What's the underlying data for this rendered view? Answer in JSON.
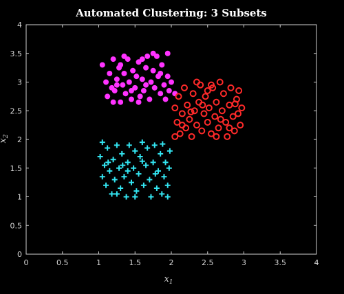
{
  "chart_data": {
    "type": "scatter",
    "title": "Automated Clustering: 3 Subsets",
    "xlabel": "x",
    "xlabel_subscript": "1",
    "ylabel": "x",
    "ylabel_subscript": "2",
    "xlim": [
      0,
      4
    ],
    "ylim": [
      0,
      4
    ],
    "xticks": [
      "0",
      "0.5",
      "1",
      "1.5",
      "2",
      "2.5",
      "3",
      "3.5",
      "4"
    ],
    "yticks": [
      "0",
      "0.5",
      "1",
      "1.5",
      "2",
      "2.5",
      "3",
      "3.5",
      "4"
    ],
    "grid": false,
    "series": [
      {
        "marker": "filled-circle",
        "color": "#ff33ff",
        "points": [
          [
            1.05,
            3.3
          ],
          [
            1.1,
            3.0
          ],
          [
            1.12,
            2.75
          ],
          [
            1.15,
            3.15
          ],
          [
            1.18,
            2.9
          ],
          [
            1.2,
            3.4
          ],
          [
            1.22,
            2.85
          ],
          [
            1.25,
            3.05
          ],
          [
            1.28,
            3.25
          ],
          [
            1.3,
            2.65
          ],
          [
            1.3,
            3.3
          ],
          [
            1.33,
            2.95
          ],
          [
            1.35,
            3.15
          ],
          [
            1.37,
            2.8
          ],
          [
            1.4,
            3.4
          ],
          [
            1.42,
            3.0
          ],
          [
            1.45,
            2.7
          ],
          [
            1.47,
            3.2
          ],
          [
            1.5,
            2.9
          ],
          [
            1.52,
            3.1
          ],
          [
            1.55,
            3.35
          ],
          [
            1.57,
            2.75
          ],
          [
            1.6,
            3.05
          ],
          [
            1.62,
            2.85
          ],
          [
            1.65,
            3.25
          ],
          [
            1.67,
            3.45
          ],
          [
            1.7,
            2.7
          ],
          [
            1.72,
            3.0
          ],
          [
            1.75,
            3.2
          ],
          [
            1.77,
            2.9
          ],
          [
            1.8,
            3.45
          ],
          [
            1.82,
            3.1
          ],
          [
            1.85,
            2.8
          ],
          [
            1.87,
            3.3
          ],
          [
            1.9,
            2.95
          ],
          [
            1.92,
            2.7
          ],
          [
            1.95,
            3.1
          ],
          [
            1.97,
            2.85
          ],
          [
            2.0,
            3.0
          ],
          [
            2.05,
            2.8
          ],
          [
            1.2,
            2.65
          ],
          [
            1.35,
            3.45
          ],
          [
            1.55,
            2.65
          ],
          [
            1.65,
            2.95
          ],
          [
            1.75,
            3.5
          ],
          [
            1.85,
            3.15
          ],
          [
            1.95,
            3.5
          ],
          [
            1.6,
            3.4
          ],
          [
            1.45,
            2.85
          ],
          [
            1.25,
            2.95
          ]
        ]
      },
      {
        "marker": "open-circle",
        "color": "#ff2a2a",
        "points": [
          [
            2.05,
            2.05
          ],
          [
            2.05,
            2.55
          ],
          [
            2.08,
            2.3
          ],
          [
            2.1,
            2.75
          ],
          [
            2.12,
            2.1
          ],
          [
            2.15,
            2.45
          ],
          [
            2.18,
            2.9
          ],
          [
            2.2,
            2.2
          ],
          [
            2.22,
            2.6
          ],
          [
            2.25,
            2.35
          ],
          [
            2.28,
            2.05
          ],
          [
            2.3,
            2.8
          ],
          [
            2.32,
            2.5
          ],
          [
            2.35,
            2.25
          ],
          [
            2.38,
            2.65
          ],
          [
            2.4,
            2.95
          ],
          [
            2.42,
            2.15
          ],
          [
            2.45,
            2.45
          ],
          [
            2.47,
            2.75
          ],
          [
            2.5,
            2.3
          ],
          [
            2.52,
            2.55
          ],
          [
            2.55,
            2.1
          ],
          [
            2.57,
            2.9
          ],
          [
            2.6,
            2.4
          ],
          [
            2.62,
            2.65
          ],
          [
            2.65,
            2.2
          ],
          [
            2.67,
            3.0
          ],
          [
            2.7,
            2.5
          ],
          [
            2.72,
            2.8
          ],
          [
            2.75,
            2.3
          ],
          [
            2.77,
            2.05
          ],
          [
            2.8,
            2.6
          ],
          [
            2.82,
            2.9
          ],
          [
            2.85,
            2.4
          ],
          [
            2.87,
            2.15
          ],
          [
            2.9,
            2.7
          ],
          [
            2.92,
            2.45
          ],
          [
            2.95,
            2.25
          ],
          [
            2.97,
            2.55
          ],
          [
            2.93,
            2.85
          ],
          [
            2.35,
            3.0
          ],
          [
            2.55,
            2.95
          ],
          [
            2.15,
            2.25
          ],
          [
            2.62,
            2.05
          ],
          [
            2.8,
            2.2
          ],
          [
            2.43,
            2.6
          ],
          [
            2.68,
            2.35
          ],
          [
            2.27,
            2.48
          ],
          [
            2.88,
            2.62
          ],
          [
            2.5,
            2.85
          ]
        ]
      },
      {
        "marker": "plus",
        "color": "#33e6f2",
        "points": [
          [
            1.02,
            1.7
          ],
          [
            1.05,
            1.35
          ],
          [
            1.05,
            1.95
          ],
          [
            1.08,
            1.55
          ],
          [
            1.1,
            1.2
          ],
          [
            1.12,
            1.85
          ],
          [
            1.15,
            1.45
          ],
          [
            1.18,
            1.05
          ],
          [
            1.2,
            1.65
          ],
          [
            1.22,
            1.3
          ],
          [
            1.25,
            1.9
          ],
          [
            1.28,
            1.5
          ],
          [
            1.3,
            1.15
          ],
          [
            1.32,
            1.75
          ],
          [
            1.35,
            1.35
          ],
          [
            1.38,
            1.0
          ],
          [
            1.4,
            1.6
          ],
          [
            1.42,
            1.9
          ],
          [
            1.45,
            1.25
          ],
          [
            1.48,
            1.5
          ],
          [
            1.5,
            1.8
          ],
          [
            1.52,
            1.1
          ],
          [
            1.55,
            1.4
          ],
          [
            1.57,
            1.7
          ],
          [
            1.6,
            1.95
          ],
          [
            1.62,
            1.2
          ],
          [
            1.65,
            1.55
          ],
          [
            1.67,
            1.85
          ],
          [
            1.7,
            1.3
          ],
          [
            1.72,
            1.0
          ],
          [
            1.75,
            1.6
          ],
          [
            1.77,
            1.9
          ],
          [
            1.8,
            1.15
          ],
          [
            1.82,
            1.45
          ],
          [
            1.85,
            1.75
          ],
          [
            1.87,
            1.05
          ],
          [
            1.9,
            1.35
          ],
          [
            1.92,
            1.6
          ],
          [
            1.95,
            1.2
          ],
          [
            1.97,
            1.5
          ],
          [
            1.98,
            1.8
          ],
          [
            1.95,
            1.0
          ],
          [
            1.5,
            1.0
          ],
          [
            1.25,
            1.05
          ],
          [
            1.13,
            1.6
          ],
          [
            1.4,
            1.45
          ],
          [
            1.6,
            1.62
          ],
          [
            1.78,
            1.4
          ],
          [
            1.33,
            1.55
          ],
          [
            1.88,
            1.92
          ]
        ]
      }
    ]
  }
}
